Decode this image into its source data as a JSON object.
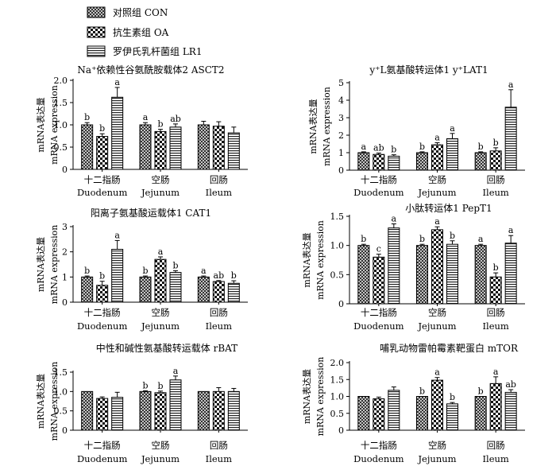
{
  "legend": [
    {
      "label": "对照组 CON",
      "pattern": "cross"
    },
    {
      "label": "抗生素组 OA",
      "pattern": "check"
    },
    {
      "label": "罗伊氏乳杆菌组 LR1",
      "pattern": "hstripe"
    }
  ],
  "groups_cn": [
    "十二指肠",
    "空肠",
    "回肠"
  ],
  "groups_en": [
    "Duodenum",
    "Jejunum",
    "Ileum"
  ],
  "ylabel_cn": "mRNA表达量",
  "ylabel_en": "mRNA expression",
  "chart_data": [
    {
      "type": "bar",
      "title": "Na⁺依赖性谷氨酰胺载体2 ASCT2",
      "categories": [
        "十二指肠 Duodenum",
        "空肠 Jejunum",
        "回肠 Ileum"
      ],
      "ylim": [
        0,
        2
      ],
      "yticks": [
        "0",
        "0.5",
        "1.0",
        "1.5",
        "2.0"
      ],
      "series": [
        {
          "name": "对照组 CON",
          "values": [
            1.0,
            1.0,
            1.0
          ],
          "errors": [
            0.05,
            0.05,
            0.08
          ],
          "letters": [
            "b",
            "a",
            ""
          ]
        },
        {
          "name": "抗生素组 OA",
          "values": [
            0.74,
            0.85,
            0.97
          ],
          "errors": [
            0.06,
            0.05,
            0.1
          ],
          "letters": [
            "b",
            "b",
            ""
          ]
        },
        {
          "name": "罗伊氏乳杆菌组 LR1",
          "values": [
            1.62,
            0.95,
            0.82
          ],
          "errors": [
            0.22,
            0.07,
            0.13
          ],
          "letters": [
            "a",
            "ab",
            ""
          ]
        }
      ]
    },
    {
      "type": "bar",
      "title": "y⁺L氨基酸转运体1 y⁺LAT1",
      "categories": [
        "十二指肠 Duodenum",
        "空肠 Jejunum",
        "回肠 Ileum"
      ],
      "ylim": [
        0,
        5
      ],
      "yticks": [
        "0",
        "1",
        "2",
        "3",
        "4",
        "5"
      ],
      "series": [
        {
          "name": "对照组 CON",
          "values": [
            1.0,
            1.0,
            1.0
          ],
          "errors": [
            0.05,
            0.05,
            0.05
          ],
          "letters": [
            "a",
            "b",
            "b"
          ]
        },
        {
          "name": "抗生素组 OA",
          "values": [
            0.9,
            1.45,
            1.1
          ],
          "errors": [
            0.08,
            0.12,
            0.18
          ],
          "letters": [
            "ab",
            "a",
            "b"
          ]
        },
        {
          "name": "罗伊氏乳杆菌组 LR1",
          "values": [
            0.8,
            1.8,
            3.6
          ],
          "errors": [
            0.08,
            0.3,
            1.0
          ],
          "letters": [
            "b",
            "a",
            "a"
          ]
        }
      ]
    },
    {
      "type": "bar",
      "title": "阳离子氨基酸运载体1 CAT1",
      "categories": [
        "十二指肠 Duodenum",
        "空肠 Jejunum",
        "回肠 Ileum"
      ],
      "ylim": [
        0,
        3
      ],
      "yticks": [
        "0",
        "1",
        "2",
        "3"
      ],
      "series": [
        {
          "name": "对照组 CON",
          "values": [
            1.0,
            1.0,
            1.0
          ],
          "errors": [
            0.04,
            0.04,
            0.04
          ],
          "letters": [
            "b",
            "b",
            "a"
          ]
        },
        {
          "name": "抗生素组 OA",
          "values": [
            0.67,
            1.7,
            0.82
          ],
          "errors": [
            0.16,
            0.1,
            0.04
          ],
          "letters": [
            "b",
            "a",
            "ab"
          ]
        },
        {
          "name": "罗伊氏乳杆菌组 LR1",
          "values": [
            2.1,
            1.18,
            0.75
          ],
          "errors": [
            0.35,
            0.07,
            0.1
          ],
          "letters": [
            "a",
            "b",
            "b"
          ]
        }
      ]
    },
    {
      "type": "bar",
      "title": "小肽转运体1 PepT1",
      "categories": [
        "十二指肠 Duodenum",
        "空肠 Jejunum",
        "回肠 Ileum"
      ],
      "ylim": [
        0,
        1.5
      ],
      "yticks": [
        "0",
        "0.5",
        "1.0",
        "1.5"
      ],
      "series": [
        {
          "name": "对照组 CON",
          "values": [
            1.0,
            1.0,
            1.0
          ],
          "errors": [
            0.02,
            0.02,
            0.02
          ],
          "letters": [
            "b",
            "b",
            "a"
          ]
        },
        {
          "name": "抗生素组 OA",
          "values": [
            0.8,
            1.27,
            0.46
          ],
          "errors": [
            0.05,
            0.05,
            0.07
          ],
          "letters": [
            "c",
            "a",
            "b"
          ]
        },
        {
          "name": "罗伊氏乳杆菌组 LR1",
          "values": [
            1.3,
            1.02,
            1.04
          ],
          "errors": [
            0.07,
            0.06,
            0.13
          ],
          "letters": [
            "a",
            "b",
            "a"
          ]
        }
      ]
    },
    {
      "type": "bar",
      "title": "中性和碱性氨基酸转运载体 rBAT",
      "categories": [
        "十二指肠 Duodenum",
        "空肠 Jejunum",
        "回肠 Ileum"
      ],
      "ylim": [
        0,
        1.5
      ],
      "yticks": [
        "0",
        "0.5",
        "1.0",
        "1.5"
      ],
      "series": [
        {
          "name": "对照组 CON",
          "values": [
            1.0,
            1.0,
            1.0
          ],
          "errors": [
            0.0,
            0.02,
            0.0
          ],
          "letters": [
            "",
            "b",
            ""
          ]
        },
        {
          "name": "抗生素组 OA",
          "values": [
            0.82,
            0.97,
            1.0
          ],
          "errors": [
            0.04,
            0.04,
            0.1
          ],
          "letters": [
            "",
            "b",
            ""
          ]
        },
        {
          "name": "罗伊氏乳杆菌组 LR1",
          "values": [
            0.85,
            1.3,
            1.0
          ],
          "errors": [
            0.13,
            0.1,
            0.08
          ],
          "letters": [
            "",
            "a",
            ""
          ]
        }
      ]
    },
    {
      "type": "bar",
      "title": "哺乳动物雷帕霉素靶蛋白 mTOR",
      "categories": [
        "十二指肠 Duodenum",
        "空肠 Jejunum",
        "回肠 Ileum"
      ],
      "ylim": [
        0,
        2
      ],
      "yticks": [
        "0",
        "0.5",
        "1.0",
        "1.5",
        "2.0"
      ],
      "series": [
        {
          "name": "对照组 CON",
          "values": [
            1.0,
            1.0,
            1.0
          ],
          "errors": [
            0.0,
            0.0,
            0.0
          ],
          "letters": [
            "",
            "b",
            "b"
          ]
        },
        {
          "name": "抗生素组 OA",
          "values": [
            0.93,
            1.48,
            1.38
          ],
          "errors": [
            0.05,
            0.08,
            0.2
          ],
          "letters": [
            "",
            "a",
            "a"
          ]
        },
        {
          "name": "罗伊氏乳杆菌组 LR1",
          "values": [
            1.18,
            0.78,
            1.12
          ],
          "errors": [
            0.1,
            0.04,
            0.08
          ],
          "letters": [
            "",
            "b",
            "ab"
          ]
        }
      ]
    }
  ]
}
